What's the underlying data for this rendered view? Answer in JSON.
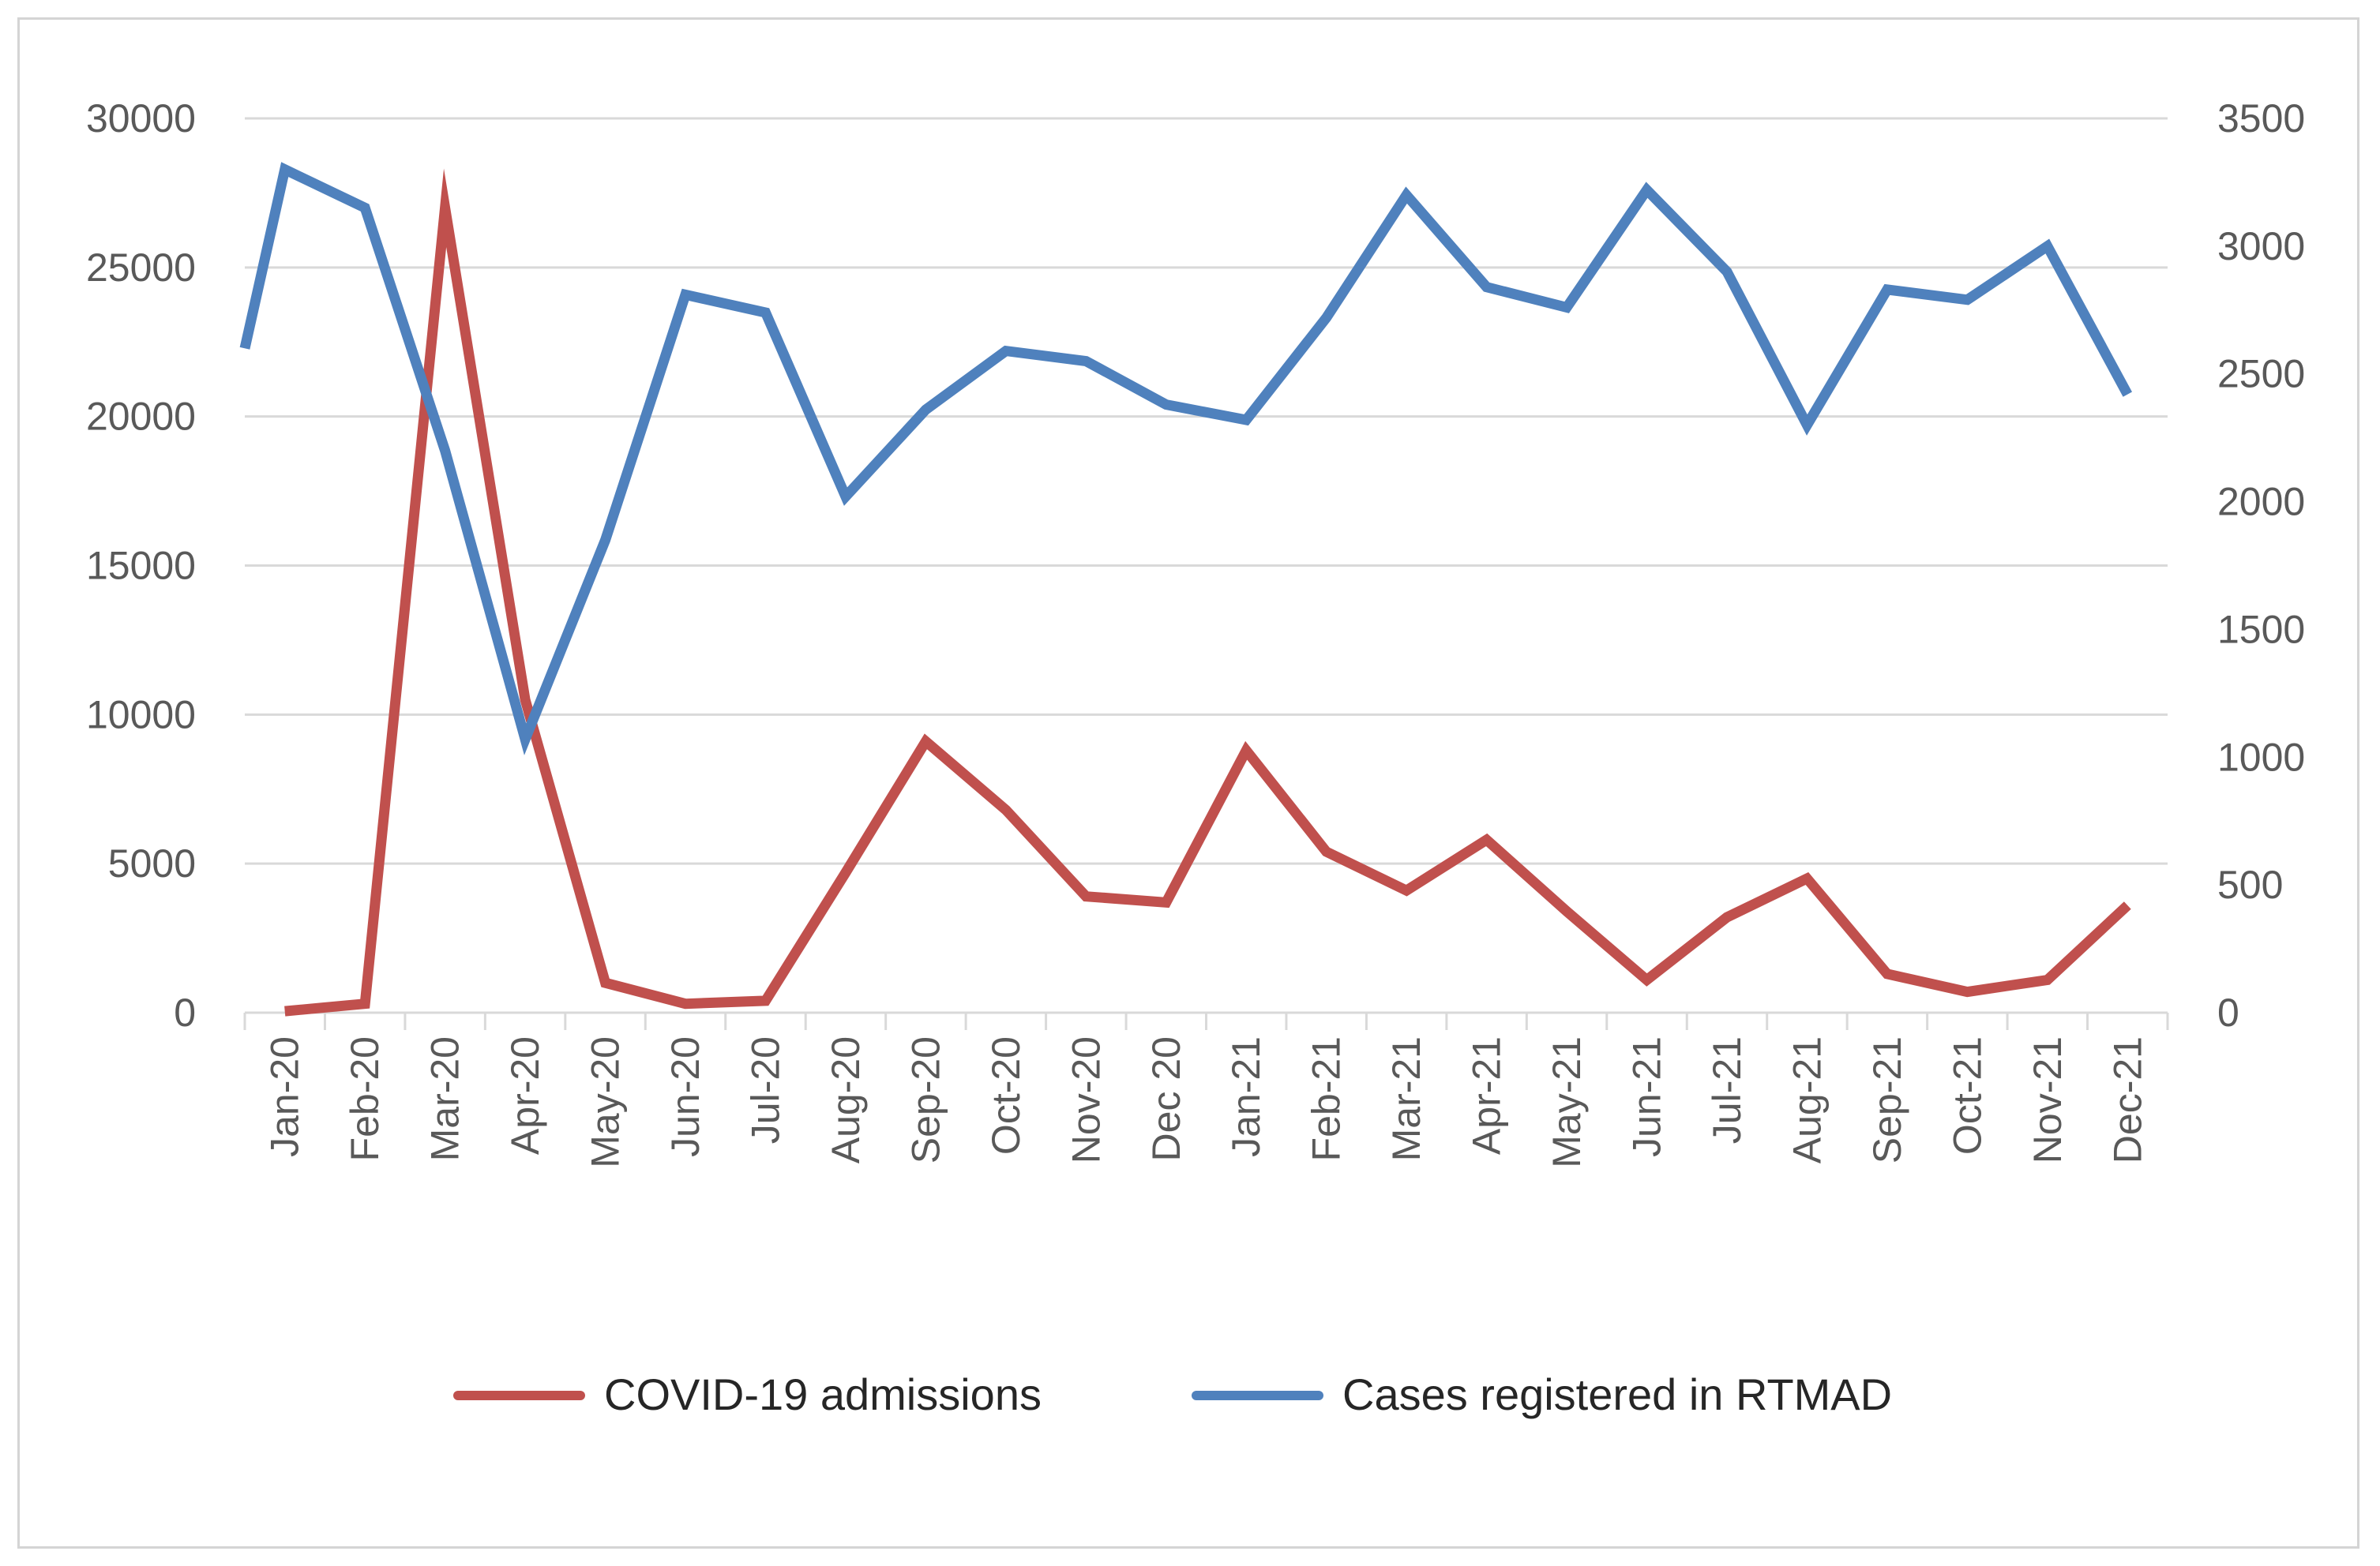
{
  "chart_data": {
    "type": "line",
    "title": "",
    "xlabel": "",
    "ylabel": "",
    "categories": [
      "Jan-20",
      "Feb-20",
      "Mar-20",
      "Apr-20",
      "May-20",
      "Jun-20",
      "Jul-20",
      "Aug-20",
      "Sep-20",
      "Oct-20",
      "Nov-20",
      "Dec 20",
      "Jan-21",
      "Feb-21",
      "Mar-21",
      "Apr-21",
      "May-21",
      "Jun-21",
      "Jul-21",
      "Aug-21",
      "Sep-21",
      "Oct-21",
      "Nov-21",
      "Dec-21"
    ],
    "y_left": {
      "range": [
        0,
        30000
      ],
      "ticks": [
        "0",
        "5000",
        "10000",
        "15000",
        "20000",
        "25000",
        "30000"
      ]
    },
    "y_right": {
      "range": [
        0,
        3500
      ],
      "ticks": [
        "0",
        "500",
        "1000",
        "1500",
        "2000",
        "2500",
        "3000",
        "3500"
      ]
    },
    "grid": true,
    "legend_position": "bottom",
    "series": [
      {
        "name": "COVID-19 admissions",
        "axis": "left",
        "color": "#c0504d",
        "values": [
          50,
          300,
          27000,
          10500,
          1000,
          300,
          400,
          4700,
          9100,
          6800,
          3900,
          3700,
          8800,
          5400,
          4100,
          5800,
          3400,
          1100,
          3200,
          4500,
          1300,
          700,
          1100,
          3600
        ]
      },
      {
        "name": "Cases registered in RTMAD",
        "axis": "right",
        "color": "#4f81bd",
        "start_value": 2600,
        "values": [
          3300,
          3150,
          2200,
          1070,
          1850,
          2810,
          2740,
          2020,
          2360,
          2590,
          2550,
          2380,
          2320,
          2720,
          3200,
          2840,
          2760,
          3220,
          2900,
          2300,
          2830,
          2790,
          3000,
          2420
        ]
      }
    ]
  }
}
